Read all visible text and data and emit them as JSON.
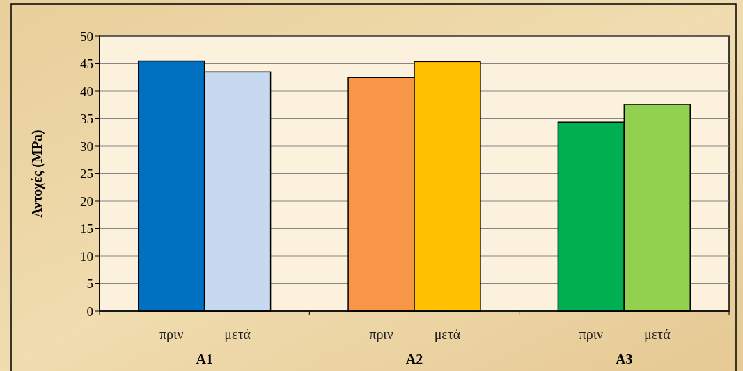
{
  "chart_data": {
    "type": "bar",
    "ylabel": "Αντοχές (MPa)",
    "categories": [
      "A1",
      "A2",
      "A3"
    ],
    "series": [
      {
        "name": "πριν",
        "colors": [
          "#0070c0",
          "#f79646",
          "#00b050"
        ],
        "values": [
          45.5,
          42.5,
          34.4
        ]
      },
      {
        "name": "μετά",
        "colors": [
          "#c6d9f1",
          "#ffc000",
          "#92d050"
        ],
        "values": [
          43.5,
          45.4,
          37.6
        ]
      }
    ],
    "ylim": [
      0,
      50
    ],
    "yticks": [
      0,
      5,
      10,
      15,
      20,
      25,
      30,
      35,
      40,
      45,
      50
    ],
    "grid": "y"
  }
}
